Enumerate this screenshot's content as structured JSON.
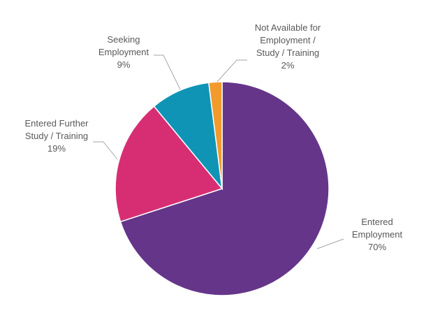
{
  "chart_data": {
    "type": "pie",
    "title": "",
    "slices": [
      {
        "label_lines": [
          "Entered",
          "Employment"
        ],
        "value": 70,
        "value_label": "70%",
        "color": "#65358a"
      },
      {
        "label_lines": [
          "Entered Further",
          "Study / Training"
        ],
        "value": 19,
        "value_label": "19%",
        "color": "#d72e73"
      },
      {
        "label_lines": [
          "Seeking",
          "Employment"
        ],
        "value": 9,
        "value_label": "9%",
        "color": "#0f94b5"
      },
      {
        "label_lines": [
          "Not Available for",
          "Employment /",
          "Study / Training"
        ],
        "value": 2,
        "value_label": "2%",
        "color": "#f39a2c"
      }
    ],
    "legend": "none",
    "label_style": "outside with leader lines"
  }
}
